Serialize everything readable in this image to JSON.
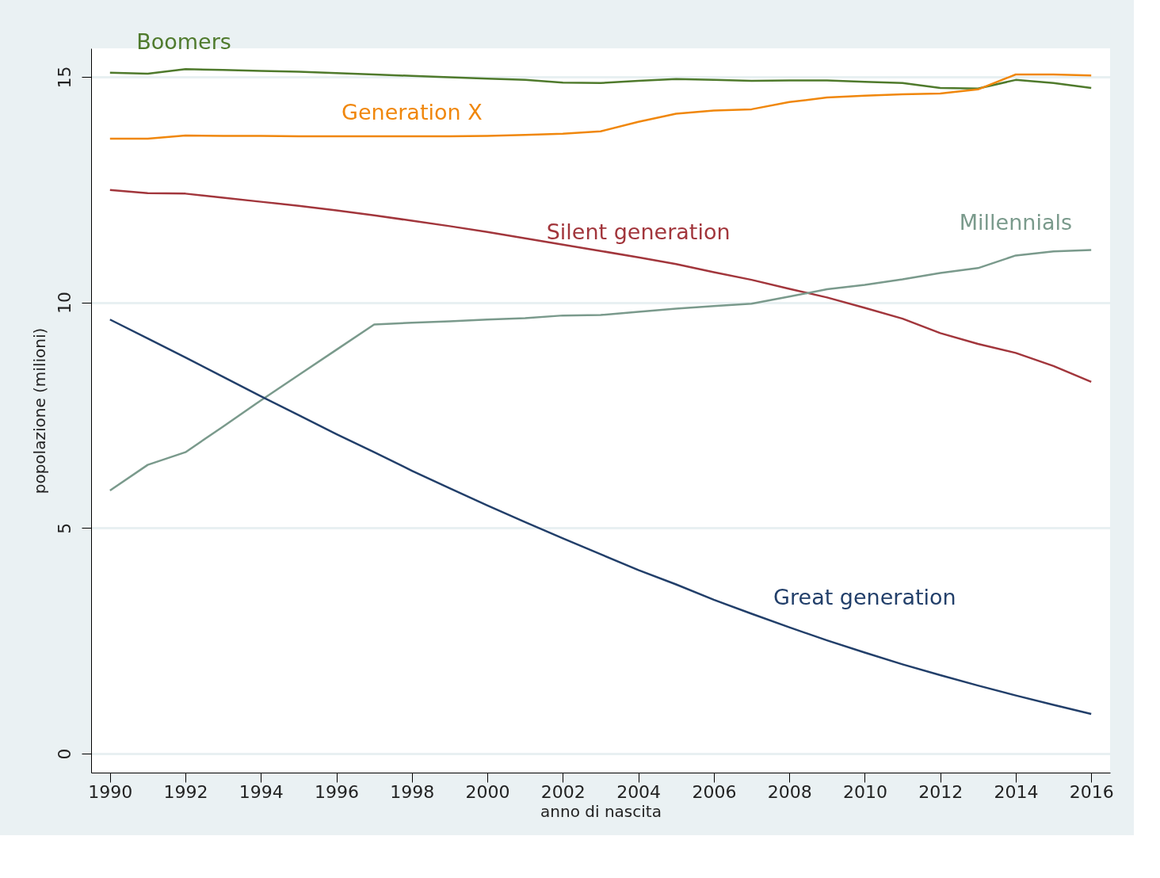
{
  "chart_data": {
    "type": "line",
    "xlabel": "anno di nascita",
    "ylabel": "popolazione (milioni)",
    "x": [
      1990,
      1991,
      1992,
      1993,
      1994,
      1995,
      1996,
      1997,
      1998,
      1999,
      2000,
      2001,
      2002,
      2003,
      2004,
      2005,
      2006,
      2007,
      2008,
      2009,
      2010,
      2011,
      2012,
      2013,
      2014,
      2015,
      2016
    ],
    "series": [
      {
        "name": "Boomers",
        "color": "#4f7a2c",
        "values": [
          15.09,
          15.07,
          15.17,
          15.15,
          15.13,
          15.11,
          15.08,
          15.05,
          15.02,
          14.99,
          14.96,
          14.93,
          14.87,
          14.86,
          14.91,
          14.95,
          14.93,
          14.91,
          14.92,
          14.92,
          14.89,
          14.86,
          14.75,
          14.74,
          14.93,
          14.86,
          14.75
        ]
      },
      {
        "name": "Generation X",
        "color": "#f0870c",
        "values": [
          13.63,
          13.63,
          13.7,
          13.69,
          13.69,
          13.68,
          13.68,
          13.68,
          13.68,
          13.68,
          13.69,
          13.71,
          13.74,
          13.79,
          14.0,
          14.18,
          14.25,
          14.28,
          14.44,
          14.54,
          14.58,
          14.61,
          14.63,
          14.72,
          15.05,
          15.05,
          15.03
        ]
      },
      {
        "name": "Silent generation",
        "color": "#a2363c",
        "values": [
          12.49,
          12.42,
          12.41,
          12.32,
          12.23,
          12.14,
          12.04,
          11.93,
          11.81,
          11.69,
          11.56,
          11.42,
          11.28,
          11.14,
          11.0,
          10.85,
          10.67,
          10.5,
          10.3,
          10.11,
          9.88,
          9.64,
          9.32,
          9.08,
          8.88,
          8.59,
          8.24
        ]
      },
      {
        "name": "Millennials",
        "color": "#7a9a8c",
        "values": [
          5.83,
          6.4,
          6.68,
          7.25,
          7.83,
          8.39,
          8.95,
          9.51,
          9.55,
          9.58,
          9.62,
          9.65,
          9.71,
          9.72,
          9.79,
          9.86,
          9.92,
          9.97,
          10.13,
          10.29,
          10.39,
          10.51,
          10.65,
          10.76,
          11.04,
          11.13,
          11.16
        ]
      },
      {
        "name": "Great generation",
        "color": "#223f6a",
        "values": [
          9.62,
          9.2,
          8.78,
          8.35,
          7.92,
          7.5,
          7.08,
          6.68,
          6.27,
          5.88,
          5.5,
          5.13,
          4.77,
          4.42,
          4.07,
          3.75,
          3.41,
          3.1,
          2.8,
          2.51,
          2.24,
          1.98,
          1.74,
          1.51,
          1.29,
          1.08,
          0.88
        ]
      }
    ],
    "xlim": [
      1989.5,
      2016.5
    ],
    "ylim": [
      -0.42,
      15.63
    ],
    "xticks": [
      1990,
      1992,
      1994,
      1996,
      1998,
      2000,
      2002,
      2004,
      2006,
      2008,
      2010,
      2012,
      2014,
      2016
    ],
    "yticks": [
      0,
      5,
      10,
      15
    ],
    "grid": "y",
    "legend": false,
    "marker": "none",
    "line_style": "solid"
  }
}
